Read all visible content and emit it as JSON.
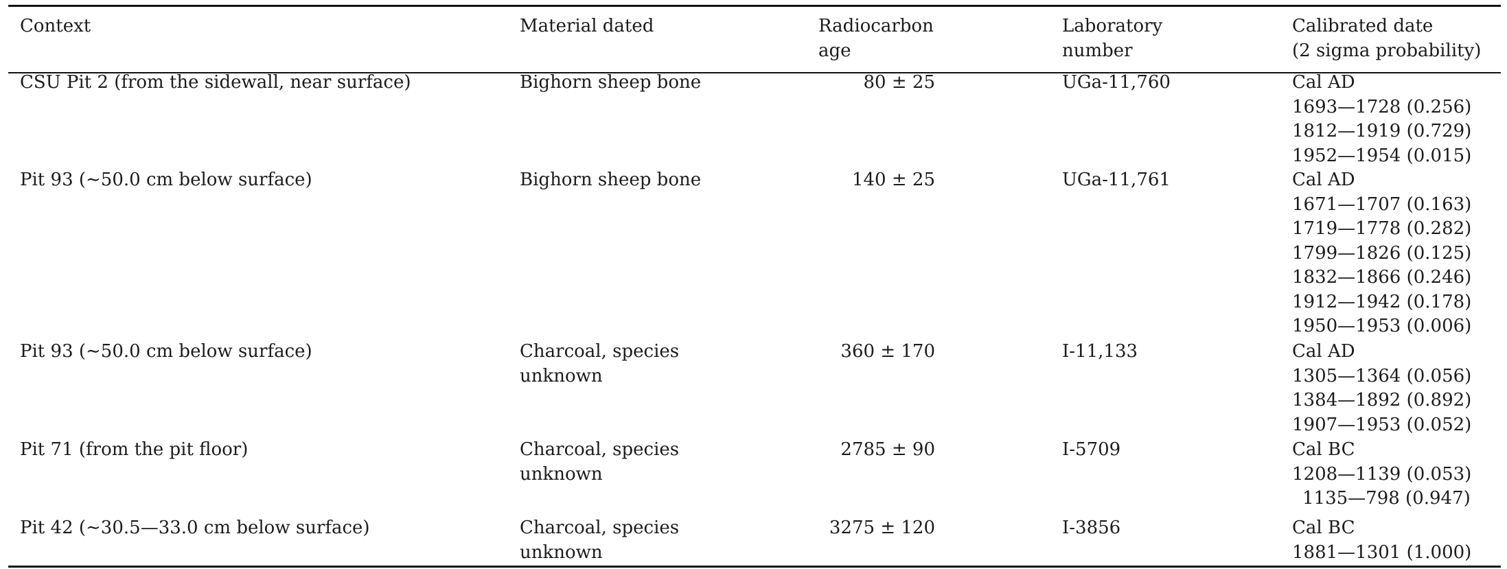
{
  "table": {
    "headers": {
      "context": "Context",
      "material": "Material dated",
      "age_line1": "Radiocarbon",
      "age_line2": "age",
      "lab_line1": "Laboratory",
      "lab_line2": "number",
      "cal_line1": "Calibrated date",
      "cal_line2": "(2 sigma probability)"
    },
    "rows": [
      {
        "context": "CSU Pit 2 (from the sidewall, near surface)",
        "material_line1": "Bighorn sheep bone",
        "material_line2": "",
        "age": "80 ± 25",
        "lab": "UGa-11,760",
        "cal": [
          "Cal AD",
          "1693—1728 (0.256)",
          "1812—1919 (0.729)",
          "1952—1954 (0.015)"
        ]
      },
      {
        "context": "Pit 93 (∼50.0 cm below surface)",
        "material_line1": "Bighorn sheep bone",
        "material_line2": "",
        "age": "140 ± 25",
        "lab": "UGa-11,761",
        "cal": [
          "Cal AD",
          "1671—1707 (0.163)",
          "1719—1778 (0.282)",
          "1799—1826 (0.125)",
          "1832—1866 (0.246)",
          "1912—1942 (0.178)",
          "1950—1953 (0.006)"
        ]
      },
      {
        "context": "Pit 93 (∼50.0 cm below surface)",
        "material_line1": "Charcoal, species",
        "material_line2": "unknown",
        "age": "360 ± 170",
        "lab": "I-11,133",
        "cal": [
          "Cal AD",
          "1305—1364 (0.056)",
          "1384—1892 (0.892)",
          "1907—1953 (0.052)"
        ]
      },
      {
        "context": "Pit 71 (from the pit floor)",
        "material_line1": "Charcoal, species",
        "material_line2": "unknown",
        "age": "2785 ± 90",
        "lab": "I-5709",
        "cal": [
          "Cal BC",
          "1208—1139 (0.053)",
          "1135—798 (0.947)"
        ]
      },
      {
        "context": "Pit 42 (∼30.5—33.0 cm below surface)",
        "material_line1": "Charcoal, species",
        "material_line2": "unknown",
        "age": "3275 ± 120",
        "lab": "I-3856",
        "cal": [
          "Cal BC",
          "1881—1301 (1.000)"
        ]
      }
    ]
  }
}
